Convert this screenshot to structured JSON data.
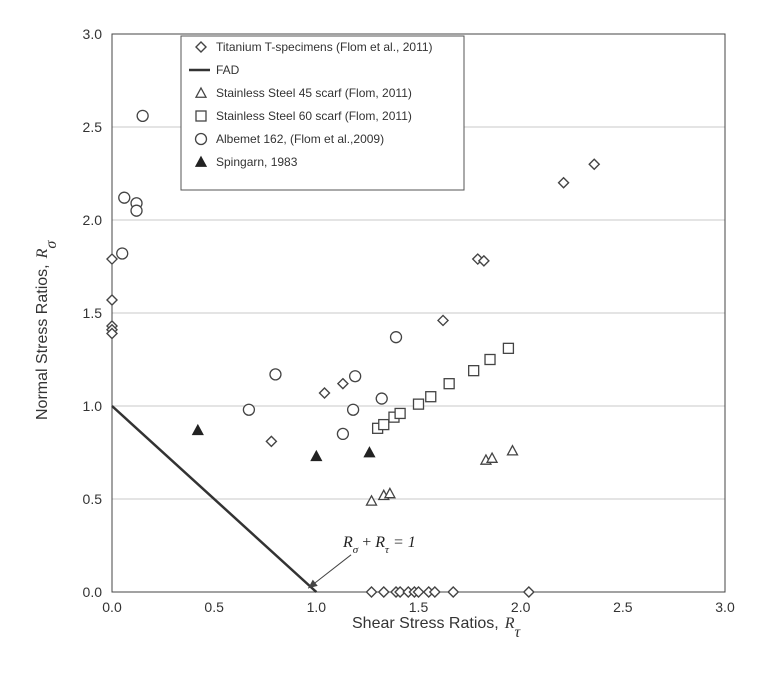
{
  "chart_data": {
    "type": "scatter",
    "xlabel": "Shear Stress Ratios,",
    "xlabel_symbol": "R",
    "xlabel_sub": "τ",
    "ylabel": "Normal Stress Ratios,",
    "ylabel_symbol": "R",
    "ylabel_sub": "σ",
    "xlim": [
      0,
      3
    ],
    "ylim": [
      0,
      3
    ],
    "x_ticks": [
      "0.0",
      "0.5",
      "1.0",
      "1.5",
      "2.0",
      "2.5",
      "3.0"
    ],
    "y_ticks": [
      "0.0",
      "0.5",
      "1.0",
      "1.5",
      "2.0",
      "2.5",
      "3.0"
    ],
    "grid": "horizontal",
    "legend_position": "top-left",
    "annotation": {
      "R": "R",
      "sub1": "σ",
      "plus": "+",
      "sub2": "τ",
      "rest": "= 1",
      "arrow_from": [
        1.17,
        0.2
      ],
      "arrow_to": [
        0.96,
        0.02
      ]
    },
    "series": [
      {
        "name": "Titanium T-specimens (Flom et al., 2011)",
        "marker": "diamond",
        "color": "#444444",
        "fill": "#ffffff",
        "points": [
          [
            0.0,
            1.79
          ],
          [
            0.0,
            1.57
          ],
          [
            0.0,
            1.43
          ],
          [
            0.0,
            1.41
          ],
          [
            0.0,
            1.39
          ],
          [
            0.78,
            0.81
          ],
          [
            1.04,
            1.07
          ],
          [
            1.13,
            1.12
          ],
          [
            1.62,
            1.46
          ],
          [
            1.79,
            1.79
          ],
          [
            1.82,
            1.78
          ],
          [
            2.21,
            2.2
          ],
          [
            2.36,
            2.3
          ],
          [
            1.27,
            0.0
          ],
          [
            1.33,
            0.0
          ],
          [
            1.39,
            0.0
          ],
          [
            1.41,
            0.0
          ],
          [
            1.45,
            0.0
          ],
          [
            1.48,
            0.0
          ],
          [
            1.5,
            0.0
          ],
          [
            1.55,
            0.0
          ],
          [
            1.58,
            0.0
          ],
          [
            1.67,
            0.0
          ],
          [
            2.04,
            0.0
          ]
        ]
      },
      {
        "name": "FAD",
        "marker": "line",
        "color": "#333333",
        "points": [
          [
            0.0,
            1.0
          ],
          [
            1.0,
            0.0
          ]
        ]
      },
      {
        "name": "Stainless Steel 45 scarf (Flom, 2011)",
        "marker": "triangle",
        "color": "#444444",
        "fill": "#ffffff",
        "points": [
          [
            1.27,
            0.49
          ],
          [
            1.33,
            0.52
          ],
          [
            1.36,
            0.53
          ],
          [
            1.83,
            0.71
          ],
          [
            1.86,
            0.72
          ],
          [
            1.96,
            0.76
          ]
        ]
      },
      {
        "name": "Stainless Steel 60 scarf (Flom, 2011)",
        "marker": "square",
        "color": "#444444",
        "fill": "#ffffff",
        "points": [
          [
            1.3,
            0.88
          ],
          [
            1.33,
            0.9
          ],
          [
            1.38,
            0.94
          ],
          [
            1.41,
            0.96
          ],
          [
            1.5,
            1.01
          ],
          [
            1.56,
            1.05
          ],
          [
            1.65,
            1.12
          ],
          [
            1.77,
            1.19
          ],
          [
            1.85,
            1.25
          ],
          [
            1.94,
            1.31
          ]
        ]
      },
      {
        "name": "Albemet 162, (Flom et al.,2009)",
        "marker": "circle",
        "color": "#444444",
        "fill": "#ffffff",
        "points": [
          [
            0.06,
            2.12
          ],
          [
            0.12,
            2.09
          ],
          [
            0.12,
            2.05
          ],
          [
            0.15,
            2.56
          ],
          [
            0.05,
            1.82
          ],
          [
            0.67,
            0.98
          ],
          [
            0.8,
            1.17
          ],
          [
            1.13,
            0.85
          ],
          [
            1.18,
            0.98
          ],
          [
            1.19,
            1.16
          ],
          [
            1.32,
            1.04
          ],
          [
            1.39,
            1.37
          ]
        ]
      },
      {
        "name": "Spingarn, 1983",
        "marker": "triangle-filled",
        "color": "#222222",
        "fill": "#222222",
        "points": [
          [
            0.42,
            0.87
          ],
          [
            1.0,
            0.73
          ],
          [
            1.26,
            0.75
          ]
        ]
      }
    ]
  }
}
